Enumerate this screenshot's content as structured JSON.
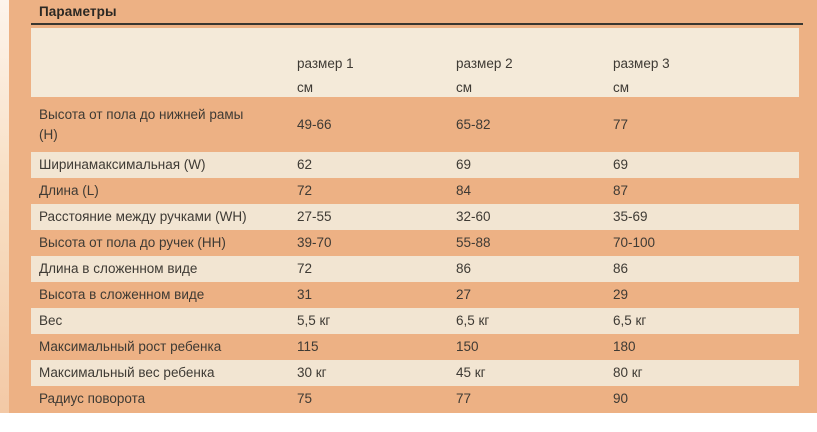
{
  "title": "Параметры",
  "colors": {
    "background_orange": "#edb184",
    "stripe_beige": "#f2e5d2",
    "header_beige": "#f4ead9",
    "text_dark": "#3e3a34",
    "rule_dark": "#3a3731",
    "page_white": "#ffffff"
  },
  "table": {
    "columns": [
      {
        "name": "размер 1",
        "unit": "см"
      },
      {
        "name": "размер 2",
        "unit": "см"
      },
      {
        "name": "размер 3",
        "unit": "см"
      }
    ],
    "rows": [
      {
        "label": "Высота от пола до нижней рамы (Н)",
        "values": [
          "49-66",
          "65-82",
          "77"
        ]
      },
      {
        "label": "Ширинамаксимальная (W)",
        "values": [
          "62",
          "69",
          "69"
        ]
      },
      {
        "label": "Длина (L)",
        "values": [
          "72",
          "84",
          "87"
        ]
      },
      {
        "label": "Расстояние между ручками (WH)",
        "values": [
          "27-55",
          "32-60",
          "35-69"
        ]
      },
      {
        "label": "Высота от пола до ручек (НН)",
        "values": [
          "39-70",
          "55-88",
          "70-100"
        ]
      },
      {
        "label": "Длина в сложенном виде",
        "values": [
          "72",
          "86",
          "86"
        ]
      },
      {
        "label": "Высота в сложенном виде",
        "values": [
          "31",
          "27",
          "29"
        ]
      },
      {
        "label": "Вес",
        "values": [
          "5,5 кг",
          "6,5 кг",
          "6,5 кг"
        ]
      },
      {
        "label": "Максимальный рост ребенка",
        "values": [
          "115",
          "150",
          "180"
        ]
      },
      {
        "label": "Максимальный вес ребенка",
        "values": [
          "30 кг",
          "45 кг",
          "80 кг"
        ]
      },
      {
        "label": "Радиус поворота",
        "values": [
          "75",
          "77",
          "90"
        ]
      }
    ]
  }
}
